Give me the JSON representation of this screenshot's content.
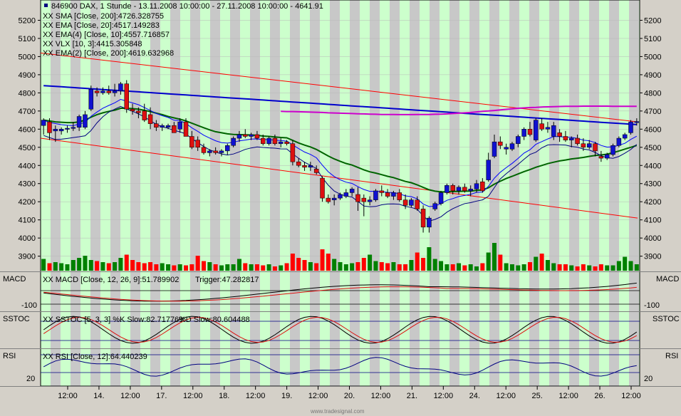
{
  "header": {
    "symbol_line": "846900  DAX, 1 Stunde - 13.11.2008 10:00:00 - 27.11.2008 10:00:00 - 4641.91",
    "indicators": [
      {
        "text": "XX SMA [Close, 200]:4726.328755",
        "color": "#cc00cc"
      },
      {
        "text": "XX EMA [Close, 20]:4517.149283",
        "color": "#006400"
      },
      {
        "text": "XX EMA(4) [Close, 10]:4557.716857",
        "color": "#0000cc"
      },
      {
        "text": "XX VLX [10, 3]:4415.305848",
        "color": "#0000aa"
      },
      {
        "text": "XX EMA(2) [Close, 200]:4619.632968",
        "color": "#0000cc"
      }
    ]
  },
  "panels": {
    "macd": {
      "name": "MACD",
      "legend": "XX MACD [Close, 12, 26, 9]:51.789902",
      "trigger": "Trigger:47.282817",
      "tick_left": "-100",
      "tick_right": "-100"
    },
    "sstoc": {
      "name": "SSTOC",
      "legend": "XX SSTOC [5, 3, 3] %K Slow:82.717769",
      "trigger": "%D Slow:80.604488"
    },
    "rsi": {
      "name": "RSI",
      "legend": "XX RSI [Close, 12]:64.440239",
      "tick_left": "20",
      "tick_right": "20"
    }
  },
  "watermark": "www.tradesignal.com",
  "colors": {
    "up": "#1010d0",
    "down": "#dd1010",
    "band_green": "#ccffcc",
    "band_gray": "#c8c8c8"
  },
  "chart_data": {
    "type": "candlestick",
    "ylim": [
      3820,
      5300
    ],
    "y_ticks": [
      3900,
      4000,
      4100,
      4200,
      4300,
      4400,
      4500,
      4600,
      4700,
      4800,
      4900,
      5000,
      5100,
      5200
    ],
    "x_labels": [
      "12:00",
      "14.",
      "12:00",
      "17.",
      "12:00",
      "18.",
      "12:00",
      "19.",
      "12:00",
      "20.",
      "12:00",
      "21.",
      "12:00",
      "24.",
      "12:00",
      "25.",
      "12:00",
      "26.",
      "12:00"
    ],
    "candles": [
      {
        "o": 4620,
        "h": 4660,
        "l": 4570,
        "c": 4650
      },
      {
        "o": 4640,
        "h": 4660,
        "l": 4540,
        "c": 4580
      },
      {
        "o": 4590,
        "h": 4620,
        "l": 4530,
        "c": 4600
      },
      {
        "o": 4590,
        "h": 4610,
        "l": 4570,
        "c": 4600
      },
      {
        "o": 4600,
        "h": 4620,
        "l": 4580,
        "c": 4605
      },
      {
        "o": 4610,
        "h": 4640,
        "l": 4590,
        "c": 4610
      },
      {
        "o": 4610,
        "h": 4680,
        "l": 4590,
        "c": 4670
      },
      {
        "o": 4610,
        "h": 4700,
        "l": 4600,
        "c": 4680
      },
      {
        "o": 4710,
        "h": 4840,
        "l": 4700,
        "c": 4820
      },
      {
        "o": 4810,
        "h": 4830,
        "l": 4780,
        "c": 4800
      },
      {
        "o": 4800,
        "h": 4830,
        "l": 4790,
        "c": 4810
      },
      {
        "o": 4810,
        "h": 4840,
        "l": 4790,
        "c": 4800
      },
      {
        "o": 4800,
        "h": 4850,
        "l": 4780,
        "c": 4810
      },
      {
        "o": 4810,
        "h": 4860,
        "l": 4790,
        "c": 4850
      },
      {
        "o": 4850,
        "h": 4870,
        "l": 4690,
        "c": 4710
      },
      {
        "o": 4710,
        "h": 4740,
        "l": 4680,
        "c": 4700
      },
      {
        "o": 4700,
        "h": 4720,
        "l": 4660,
        "c": 4690
      },
      {
        "o": 4700,
        "h": 4740,
        "l": 4640,
        "c": 4650
      },
      {
        "o": 4680,
        "h": 4720,
        "l": 4600,
        "c": 4630
      },
      {
        "o": 4630,
        "h": 4650,
        "l": 4590,
        "c": 4610
      },
      {
        "o": 4610,
        "h": 4630,
        "l": 4590,
        "c": 4620
      },
      {
        "o": 4610,
        "h": 4630,
        "l": 4600,
        "c": 4620
      },
      {
        "o": 4620,
        "h": 4640,
        "l": 4580,
        "c": 4580
      },
      {
        "o": 4600,
        "h": 4660,
        "l": 4580,
        "c": 4640
      },
      {
        "o": 4640,
        "h": 4660,
        "l": 4560,
        "c": 4560
      },
      {
        "o": 4560,
        "h": 4590,
        "l": 4490,
        "c": 4500
      },
      {
        "o": 4540,
        "h": 4560,
        "l": 4480,
        "c": 4500
      },
      {
        "o": 4500,
        "h": 4520,
        "l": 4460,
        "c": 4470
      },
      {
        "o": 4470,
        "h": 4490,
        "l": 4450,
        "c": 4480
      },
      {
        "o": 4480,
        "h": 4500,
        "l": 4460,
        "c": 4470
      },
      {
        "o": 4470,
        "h": 4490,
        "l": 4450,
        "c": 4480
      },
      {
        "o": 4480,
        "h": 4520,
        "l": 4460,
        "c": 4510
      },
      {
        "o": 4510,
        "h": 4560,
        "l": 4500,
        "c": 4550
      },
      {
        "o": 4550,
        "h": 4590,
        "l": 4530,
        "c": 4570
      },
      {
        "o": 4570,
        "h": 4600,
        "l": 4550,
        "c": 4560
      },
      {
        "o": 4560,
        "h": 4580,
        "l": 4540,
        "c": 4570
      },
      {
        "o": 4570,
        "h": 4590,
        "l": 4540,
        "c": 4550
      },
      {
        "o": 4550,
        "h": 4570,
        "l": 4510,
        "c": 4520
      },
      {
        "o": 4520,
        "h": 4560,
        "l": 4510,
        "c": 4550
      },
      {
        "o": 4550,
        "h": 4570,
        "l": 4510,
        "c": 4520
      },
      {
        "o": 4520,
        "h": 4550,
        "l": 4500,
        "c": 4530
      },
      {
        "o": 4530,
        "h": 4540,
        "l": 4510,
        "c": 4520
      },
      {
        "o": 4520,
        "h": 4540,
        "l": 4400,
        "c": 4420
      },
      {
        "o": 4420,
        "h": 4440,
        "l": 4390,
        "c": 4400
      },
      {
        "o": 4400,
        "h": 4420,
        "l": 4370,
        "c": 4390
      },
      {
        "o": 4390,
        "h": 4420,
        "l": 4370,
        "c": 4400
      },
      {
        "o": 4380,
        "h": 4400,
        "l": 4350,
        "c": 4360
      },
      {
        "o": 4330,
        "h": 4340,
        "l": 4200,
        "c": 4220
      },
      {
        "o": 4220,
        "h": 4240,
        "l": 4190,
        "c": 4200
      },
      {
        "o": 4210,
        "h": 4240,
        "l": 4180,
        "c": 4220
      },
      {
        "o": 4220,
        "h": 4250,
        "l": 4210,
        "c": 4240
      },
      {
        "o": 4230,
        "h": 4270,
        "l": 4220,
        "c": 4250
      },
      {
        "o": 4250,
        "h": 4280,
        "l": 4230,
        "c": 4270
      },
      {
        "o": 4240,
        "h": 4280,
        "l": 4150,
        "c": 4200
      },
      {
        "o": 4220,
        "h": 4240,
        "l": 4120,
        "c": 4200
      },
      {
        "o": 4200,
        "h": 4230,
        "l": 4180,
        "c": 4210
      },
      {
        "o": 4210,
        "h": 4270,
        "l": 4200,
        "c": 4260
      },
      {
        "o": 4260,
        "h": 4290,
        "l": 4230,
        "c": 4250
      },
      {
        "o": 4250,
        "h": 4270,
        "l": 4220,
        "c": 4230
      },
      {
        "o": 4230,
        "h": 4260,
        "l": 4210,
        "c": 4250
      },
      {
        "o": 4250,
        "h": 4270,
        "l": 4200,
        "c": 4210
      },
      {
        "o": 4210,
        "h": 4240,
        "l": 4160,
        "c": 4180
      },
      {
        "o": 4180,
        "h": 4220,
        "l": 4170,
        "c": 4210
      },
      {
        "o": 4210,
        "h": 4230,
        "l": 4150,
        "c": 4160
      },
      {
        "o": 4160,
        "h": 4180,
        "l": 4030,
        "c": 4060
      },
      {
        "o": 4060,
        "h": 4120,
        "l": 4030,
        "c": 4110
      },
      {
        "o": 4160,
        "h": 4200,
        "l": 4150,
        "c": 4190
      },
      {
        "o": 4190,
        "h": 4260,
        "l": 4180,
        "c": 4250
      },
      {
        "o": 4250,
        "h": 4300,
        "l": 4240,
        "c": 4290
      },
      {
        "o": 4290,
        "h": 4300,
        "l": 4240,
        "c": 4260
      },
      {
        "o": 4260,
        "h": 4290,
        "l": 4240,
        "c": 4280
      },
      {
        "o": 4280,
        "h": 4300,
        "l": 4250,
        "c": 4260
      },
      {
        "o": 4260,
        "h": 4290,
        "l": 4230,
        "c": 4270
      },
      {
        "o": 4270,
        "h": 4320,
        "l": 4250,
        "c": 4300
      },
      {
        "o": 4310,
        "h": 4330,
        "l": 4250,
        "c": 4260
      },
      {
        "o": 4320,
        "h": 4470,
        "l": 4310,
        "c": 4430
      },
      {
        "o": 4450,
        "h": 4570,
        "l": 4440,
        "c": 4530
      },
      {
        "o": 4530,
        "h": 4560,
        "l": 4490,
        "c": 4510
      },
      {
        "o": 4490,
        "h": 4520,
        "l": 4460,
        "c": 4500
      },
      {
        "o": 4490,
        "h": 4530,
        "l": 4480,
        "c": 4520
      },
      {
        "o": 4520,
        "h": 4570,
        "l": 4500,
        "c": 4560
      },
      {
        "o": 4560,
        "h": 4610,
        "l": 4540,
        "c": 4600
      },
      {
        "o": 4600,
        "h": 4640,
        "l": 4560,
        "c": 4570
      },
      {
        "o": 4540,
        "h": 4660,
        "l": 4530,
        "c": 4650
      },
      {
        "o": 4630,
        "h": 4660,
        "l": 4590,
        "c": 4600
      },
      {
        "o": 4600,
        "h": 4640,
        "l": 4580,
        "c": 4610
      },
      {
        "o": 4560,
        "h": 4640,
        "l": 4540,
        "c": 4620
      },
      {
        "o": 4580,
        "h": 4600,
        "l": 4530,
        "c": 4560
      },
      {
        "o": 4560,
        "h": 4590,
        "l": 4530,
        "c": 4540
      },
      {
        "o": 4540,
        "h": 4560,
        "l": 4500,
        "c": 4550
      },
      {
        "o": 4550,
        "h": 4570,
        "l": 4510,
        "c": 4520
      },
      {
        "o": 4520,
        "h": 4550,
        "l": 4480,
        "c": 4500
      },
      {
        "o": 4500,
        "h": 4540,
        "l": 4490,
        "c": 4520
      },
      {
        "o": 4520,
        "h": 4530,
        "l": 4450,
        "c": 4480
      },
      {
        "o": 4450,
        "h": 4480,
        "l": 4420,
        "c": 4440
      },
      {
        "o": 4440,
        "h": 4470,
        "l": 4430,
        "c": 4460
      },
      {
        "o": 4460,
        "h": 4520,
        "l": 4450,
        "c": 4510
      },
      {
        "o": 4510,
        "h": 4560,
        "l": 4500,
        "c": 4550
      },
      {
        "o": 4550,
        "h": 4580,
        "l": 4540,
        "c": 4570
      },
      {
        "o": 4580,
        "h": 4650,
        "l": 4570,
        "c": 4640
      },
      {
        "o": 4640,
        "h": 4660,
        "l": 4620,
        "c": 4642
      }
    ],
    "volume_rel": [
      0.55,
      0.35,
      0.4,
      0.35,
      0.3,
      0.5,
      0.6,
      0.7,
      0.5,
      0.45,
      0.4,
      0.35,
      0.4,
      0.6,
      0.75,
      0.5,
      0.4,
      0.35,
      0.4,
      0.3,
      0.35,
      0.3,
      0.25,
      0.3,
      0.25,
      0.3,
      0.7,
      0.45,
      0.4,
      0.3,
      0.25,
      0.3,
      0.3,
      0.55,
      0.35,
      0.3,
      0.3,
      0.25,
      0.3,
      0.2,
      0.25,
      0.35,
      0.8,
      0.6,
      0.5,
      0.4,
      0.35,
      1.0,
      0.8,
      0.55,
      0.4,
      0.3,
      0.35,
      0.4,
      0.6,
      0.75,
      0.45,
      0.4,
      0.35,
      0.4,
      0.3,
      0.3,
      0.5,
      0.85,
      0.6,
      1.1,
      0.55,
      0.45,
      0.3,
      0.3,
      0.35,
      0.25,
      0.3,
      0.2,
      0.35,
      0.85,
      1.3,
      0.75,
      0.35,
      0.3,
      0.25,
      0.3,
      0.4,
      0.65,
      0.8,
      0.5,
      0.35,
      0.3,
      0.3,
      0.25,
      0.2,
      0.3,
      0.25,
      0.2,
      0.3,
      0.25,
      0.25,
      0.45,
      0.65,
      0.45,
      0.3,
      0.25,
      0.3
    ],
    "ema20": [
      4650,
      4645,
      4640,
      4638,
      4636,
      4636,
      4640,
      4650,
      4666,
      4680,
      4690,
      4698,
      4705,
      4715,
      4715,
      4713,
      4710,
      4704,
      4697,
      4688,
      4680,
      4670,
      4662,
      4655,
      4645,
      4633,
      4620,
      4608,
      4596,
      4586,
      4580,
      4574,
      4571,
      4570,
      4569,
      4568,
      4566,
      4562,
      4560,
      4557,
      4554,
      4552,
      4538,
      4524,
      4512,
      4502,
      4488,
      4470,
      4452,
      4436,
      4423,
      4411,
      4402,
      4389,
      4376,
      4365,
      4358,
      4349,
      4340,
      4333,
      4322,
      4312,
      4305,
      4293,
      4279,
      4266,
      4258,
      4254,
      4255,
      4256,
      4257,
      4258,
      4259,
      4263,
      4265,
      4277,
      4297,
      4313,
      4328,
      4340,
      4353,
      4366,
      4377,
      4390,
      4400,
      4410,
      4418,
      4425,
      4430,
      4436,
      4440,
      4444,
      4450,
      4455,
      4458,
      4462,
      4470,
      4480,
      4490,
      4500,
      4510,
      4517
    ],
    "sma200": [
      4730,
      4729,
      4728,
      4727,
      4726,
      4725,
      4724,
      4723,
      4722,
      4720,
      4719,
      4718,
      4717,
      4716,
      4715,
      4714,
      4713,
      4712,
      4711,
      4710,
      4709,
      4708,
      4707,
      4706,
      4706,
      4706,
      4705,
      4705,
      4704,
      4704,
      4703,
      4703,
      4703,
      4702,
      4702,
      4702,
      4701,
      4700,
      4700,
      4699,
      4698,
      4697,
      4697,
      4696,
      4695,
      4694,
      4693,
      4692,
      4690,
      4689,
      4688,
      4687,
      4686,
      4685,
      4684,
      4683,
      4682,
      4681,
      4681,
      4681,
      4680,
      4680,
      4680,
      4681,
      4681,
      4681,
      4682,
      4683,
      4684,
      4686,
      4688,
      4690,
      4692,
      4695,
      4698,
      4700,
      4703,
      4706,
      4709,
      4712,
      4715,
      4717,
      4719,
      4720,
      4722,
      4723,
      4724,
      4725,
      4726,
      4726,
      4726,
      4727,
      4727,
      4727,
      4727,
      4727,
      4726,
      4726,
      4726,
      4726,
      4726,
      4726
    ]
  }
}
